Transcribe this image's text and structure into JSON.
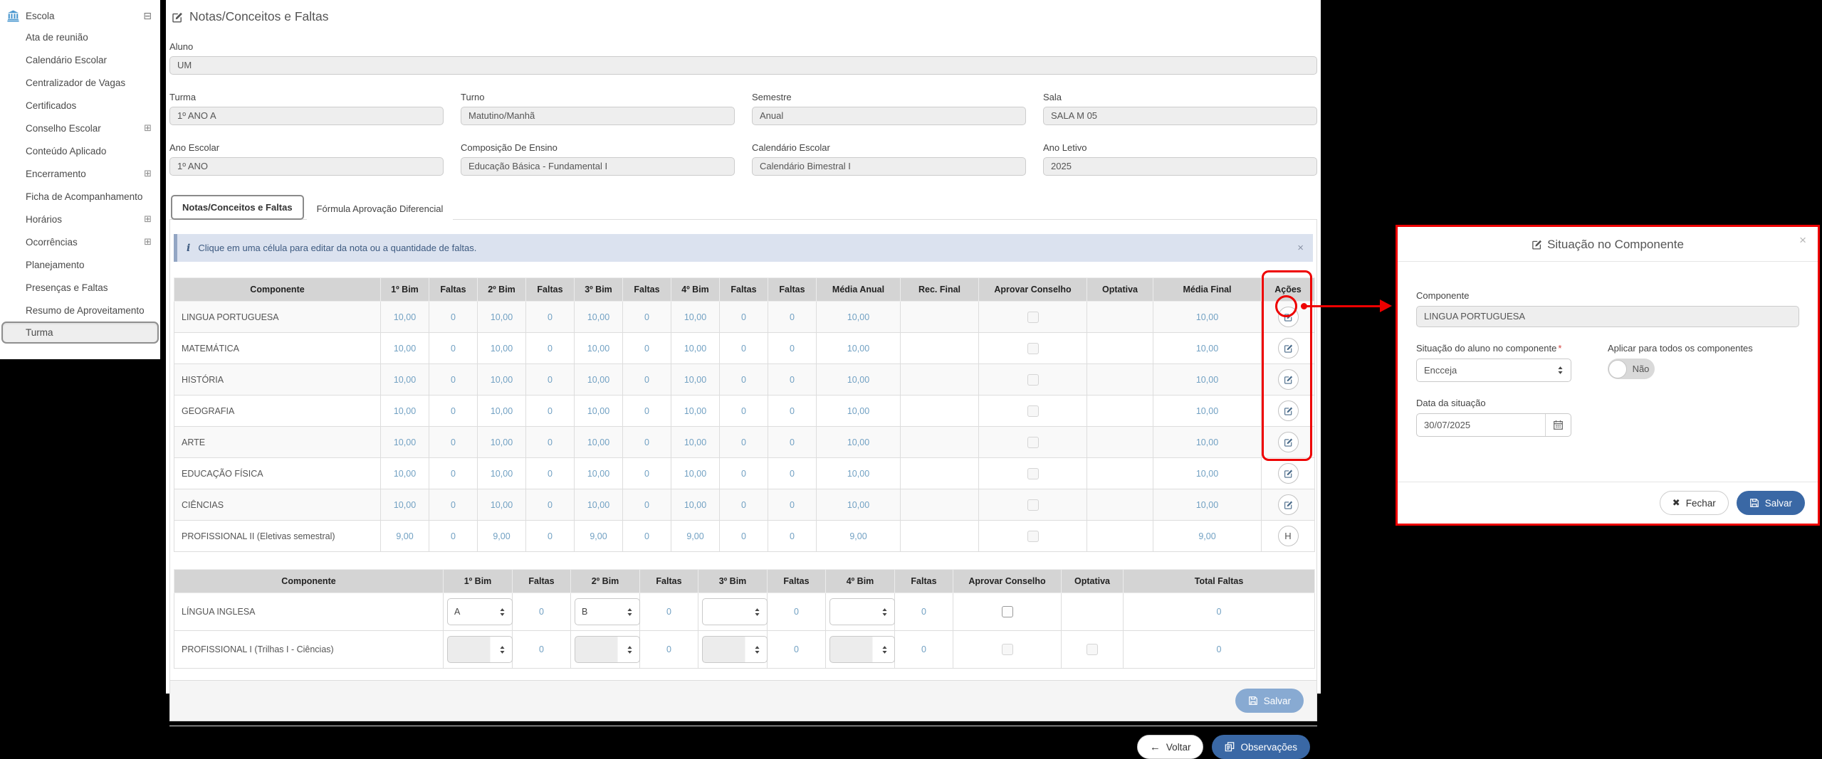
{
  "page": {
    "title": "Notas/Conceitos e Faltas"
  },
  "sidebar": {
    "root": {
      "label": "Escola",
      "collapse_icon": "⊟"
    },
    "expand_icon": "⊞",
    "items": [
      {
        "label": "Ata de reunião",
        "expandable": false,
        "selected": false
      },
      {
        "label": "Calendário Escolar",
        "expandable": false,
        "selected": false
      },
      {
        "label": "Centralizador de Vagas",
        "expandable": false,
        "selected": false
      },
      {
        "label": "Certificados",
        "expandable": false,
        "selected": false
      },
      {
        "label": "Conselho Escolar",
        "expandable": true,
        "selected": false
      },
      {
        "label": "Conteúdo Aplicado",
        "expandable": false,
        "selected": false
      },
      {
        "label": "Encerramento",
        "expandable": true,
        "selected": false
      },
      {
        "label": "Ficha de Acompanhamento",
        "expandable": false,
        "selected": false
      },
      {
        "label": "Horários",
        "expandable": true,
        "selected": false
      },
      {
        "label": "Ocorrências",
        "expandable": true,
        "selected": false
      },
      {
        "label": "Planejamento",
        "expandable": false,
        "selected": false
      },
      {
        "label": "Presenças e Faltas",
        "expandable": false,
        "selected": false
      },
      {
        "label": "Resumo de Aproveitamento",
        "expandable": false,
        "selected": false
      },
      {
        "label": "Turma",
        "expandable": false,
        "selected": true
      }
    ]
  },
  "form": {
    "aluno": {
      "label": "Aluno",
      "value": "UM"
    },
    "fields_row1": [
      {
        "label": "Turma",
        "value": "1º ANO A"
      },
      {
        "label": "Turno",
        "value": "Matutino/Manhã"
      },
      {
        "label": "Semestre",
        "value": "Anual"
      },
      {
        "label": "Sala",
        "value": "SALA M 05"
      }
    ],
    "fields_row2": [
      {
        "label": "Ano Escolar",
        "value": "1º ANO"
      },
      {
        "label": "Composição De Ensino",
        "value": "Educação Básica - Fundamental I"
      },
      {
        "label": "Calendário Escolar",
        "value": "Calendário Bimestral I"
      },
      {
        "label": "Ano Letivo",
        "value": "2025"
      }
    ]
  },
  "tabs": [
    {
      "label": "Notas/Conceitos e Faltas",
      "active": true
    },
    {
      "label": "Fórmula Aprovação Diferencial",
      "active": false
    }
  ],
  "alert": {
    "icon": "i",
    "text": "Clique em uma célula para editar da nota ou a quantidade de faltas.",
    "dismiss": "×"
  },
  "grades_table": {
    "headers": [
      "Componente",
      "1º Bim",
      "Faltas",
      "2º Bim",
      "Faltas",
      "3º Bim",
      "Faltas",
      "4º Bim",
      "Faltas",
      "Faltas",
      "Média Anual",
      "Rec. Final",
      "Aprovar Conselho",
      "Optativa",
      "Média Final",
      "Ações"
    ],
    "rows": [
      {
        "componente": "LINGUA PORTUGUESA",
        "cells": [
          "10,00",
          "0",
          "10,00",
          "0",
          "10,00",
          "0",
          "10,00",
          "0",
          "0",
          "10,00"
        ],
        "rec_final": "",
        "optativa": "",
        "media_final": "10,00",
        "action": "edit"
      },
      {
        "componente": "MATEMÁTICA",
        "cells": [
          "10,00",
          "0",
          "10,00",
          "0",
          "10,00",
          "0",
          "10,00",
          "0",
          "0",
          "10,00"
        ],
        "rec_final": "",
        "optativa": "",
        "media_final": "10,00",
        "action": "edit"
      },
      {
        "componente": "HISTÓRIA",
        "cells": [
          "10,00",
          "0",
          "10,00",
          "0",
          "10,00",
          "0",
          "10,00",
          "0",
          "0",
          "10,00"
        ],
        "rec_final": "",
        "optativa": "",
        "media_final": "10,00",
        "action": "edit"
      },
      {
        "componente": "GEOGRAFIA",
        "cells": [
          "10,00",
          "0",
          "10,00",
          "0",
          "10,00",
          "0",
          "10,00",
          "0",
          "0",
          "10,00"
        ],
        "rec_final": "",
        "optativa": "",
        "media_final": "10,00",
        "action": "edit"
      },
      {
        "componente": "ARTE",
        "cells": [
          "10,00",
          "0",
          "10,00",
          "0",
          "10,00",
          "0",
          "10,00",
          "0",
          "0",
          "10,00"
        ],
        "rec_final": "",
        "optativa": "",
        "media_final": "10,00",
        "action": "edit"
      },
      {
        "componente": "EDUCAÇÃO FÍSICA",
        "cells": [
          "10,00",
          "0",
          "10,00",
          "0",
          "10,00",
          "0",
          "10,00",
          "0",
          "0",
          "10,00"
        ],
        "rec_final": "",
        "optativa": "",
        "media_final": "10,00",
        "action": "edit"
      },
      {
        "componente": "CIÊNCIAS",
        "cells": [
          "10,00",
          "0",
          "10,00",
          "0",
          "10,00",
          "0",
          "10,00",
          "0",
          "0",
          "10,00"
        ],
        "rec_final": "",
        "optativa": "",
        "media_final": "10,00",
        "action": "edit"
      },
      {
        "componente": "PROFISSIONAL II (Eletivas semestral)",
        "cells": [
          "9,00",
          "0",
          "9,00",
          "0",
          "9,00",
          "0",
          "9,00",
          "0",
          "0",
          "9,00"
        ],
        "rec_final": "",
        "optativa": "",
        "media_final": "9,00",
        "action": "H"
      }
    ]
  },
  "concepts_table": {
    "headers": [
      "Componente",
      "1º Bim",
      "Faltas",
      "2º Bim",
      "Faltas",
      "3º Bim",
      "Faltas",
      "4º Bim",
      "Faltas",
      "Aprovar Conselho",
      "Optativa",
      "Total Faltas"
    ],
    "rows": [
      {
        "componente": "LÍNGUA INGLESA",
        "bims": [
          "A",
          "B",
          "",
          ""
        ],
        "faltas": [
          "0",
          "0",
          "0",
          "0"
        ],
        "aprovar_conselho": {
          "present": true,
          "disabled": false,
          "checked": false
        },
        "optativa": {
          "present": false,
          "disabled": false,
          "checked": false
        },
        "total_faltas": "0",
        "disabled": false
      },
      {
        "componente": "PROFISSIONAL I (Trilhas I - Ciências)",
        "bims": [
          "",
          "",
          "",
          ""
        ],
        "faltas": [
          "0",
          "0",
          "0",
          "0"
        ],
        "aprovar_conselho": {
          "present": true,
          "disabled": true,
          "checked": false
        },
        "optativa": {
          "present": true,
          "disabled": true,
          "checked": false
        },
        "total_faltas": "0",
        "disabled": true
      }
    ],
    "save_label": "Salvar"
  },
  "footer": {
    "back_label": "Voltar",
    "observations_label": "Observações"
  },
  "modal": {
    "title": "Situação no Componente",
    "close": "×",
    "componente": {
      "label": "Componente",
      "value": "LINGUA PORTUGUESA"
    },
    "situacao": {
      "label": "Situação do aluno no componente",
      "required_mark": "*",
      "value": "Encceja"
    },
    "aplicar": {
      "label": "Aplicar para todos os componentes",
      "toggle_value": "Não"
    },
    "data_situacao": {
      "label": "Data da situação",
      "value": "30/07/2025"
    },
    "fechar_label": "Fechar",
    "salvar_label": "Salvar"
  },
  "colors": {
    "accent_blue": "#3a68a5",
    "value_blue": "#72a1c3",
    "annotation_red": "#ee0000",
    "header_gray": "#d4d4d4"
  }
}
